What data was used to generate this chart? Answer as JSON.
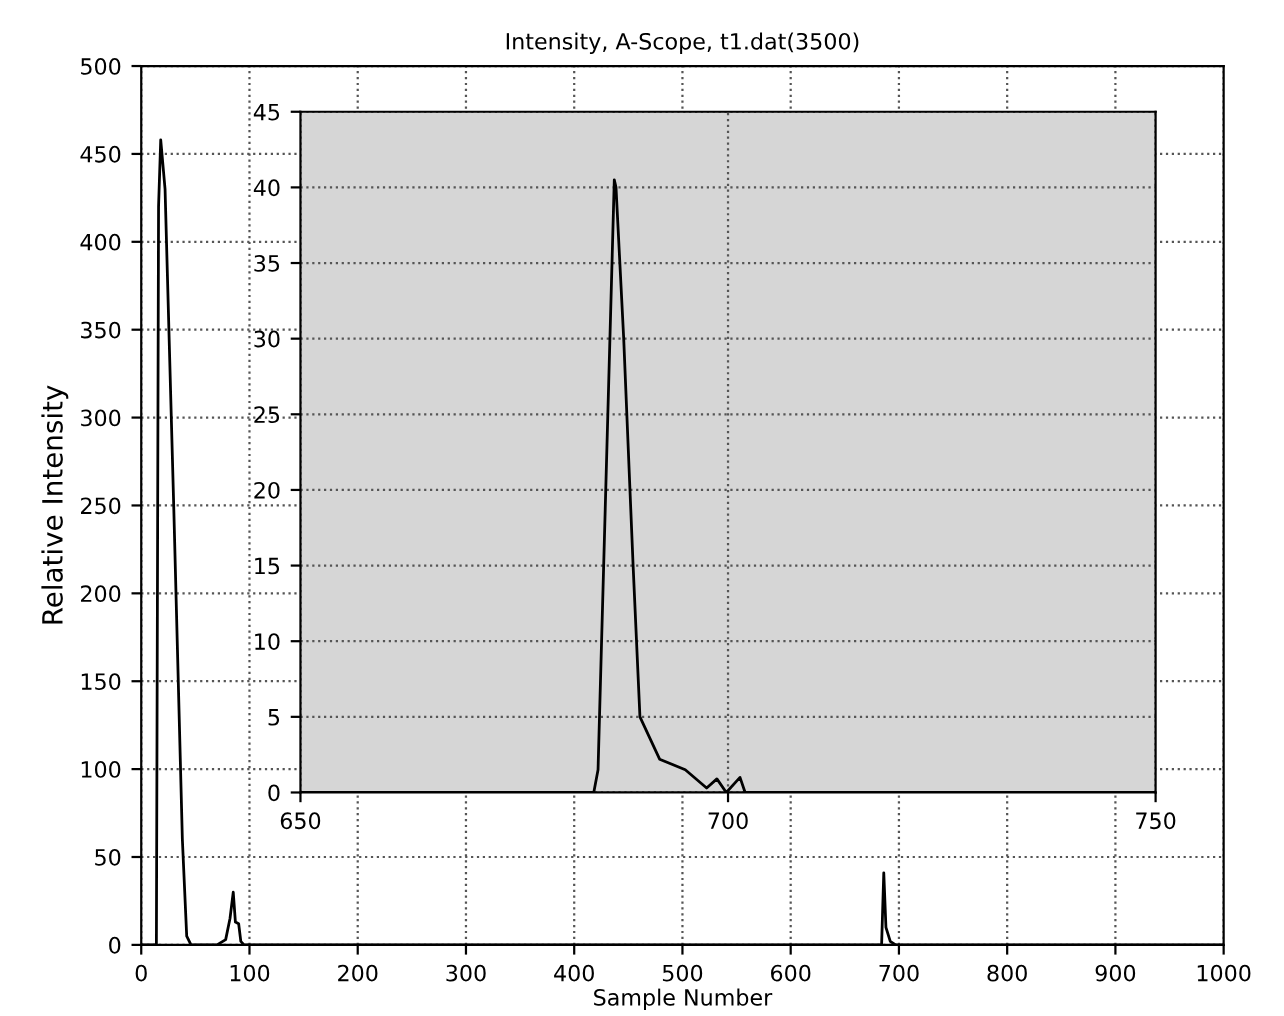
{
  "chart_data": [
    {
      "type": "line",
      "title": "Intensity, A-Scope, t1.dat(3500)",
      "xlabel": "Sample Number",
      "ylabel": "Relative Intensity",
      "x": [
        0,
        14,
        16,
        18,
        22,
        30,
        38,
        42,
        46,
        70,
        78,
        82,
        85,
        87,
        90,
        92,
        95,
        684,
        686,
        688,
        692,
        697,
        1000
      ],
      "series": [
        {
          "color": "#000000",
          "values": [
            0,
            0,
            420,
            458,
            430,
            250,
            60,
            5,
            0,
            0,
            3,
            15,
            30,
            13,
            12,
            2,
            0,
            0,
            41,
            10,
            2,
            0,
            0
          ]
        }
      ],
      "xlim": [
        0,
        1000
      ],
      "xticks": [
        0,
        100,
        200,
        300,
        400,
        500,
        600,
        700,
        800,
        900,
        1000
      ],
      "ylim": [
        0,
        500
      ],
      "yticks": [
        0,
        50,
        100,
        150,
        200,
        250,
        300,
        350,
        400,
        450,
        500
      ],
      "grid": true,
      "legend": false
    },
    {
      "type": "line",
      "x": [
        650,
        684.3,
        684.8,
        686.7,
        686.9,
        687.8,
        688.9,
        689.7,
        692,
        695,
        697.5,
        698.7,
        699.8,
        701.4,
        702,
        750
      ],
      "series": [
        {
          "color": "#000000",
          "values": [
            0,
            0,
            1.5,
            40.5,
            40,
            30,
            15,
            5,
            2.2,
            1.5,
            0.3,
            0.9,
            0,
            1,
            0,
            0
          ]
        }
      ],
      "xlim": [
        650,
        750
      ],
      "xticks": [
        650,
        700,
        750
      ],
      "ylim": [
        0,
        45
      ],
      "yticks": [
        0,
        5,
        10,
        15,
        20,
        25,
        30,
        35,
        40,
        45
      ],
      "grid": true,
      "legend": false
    }
  ]
}
